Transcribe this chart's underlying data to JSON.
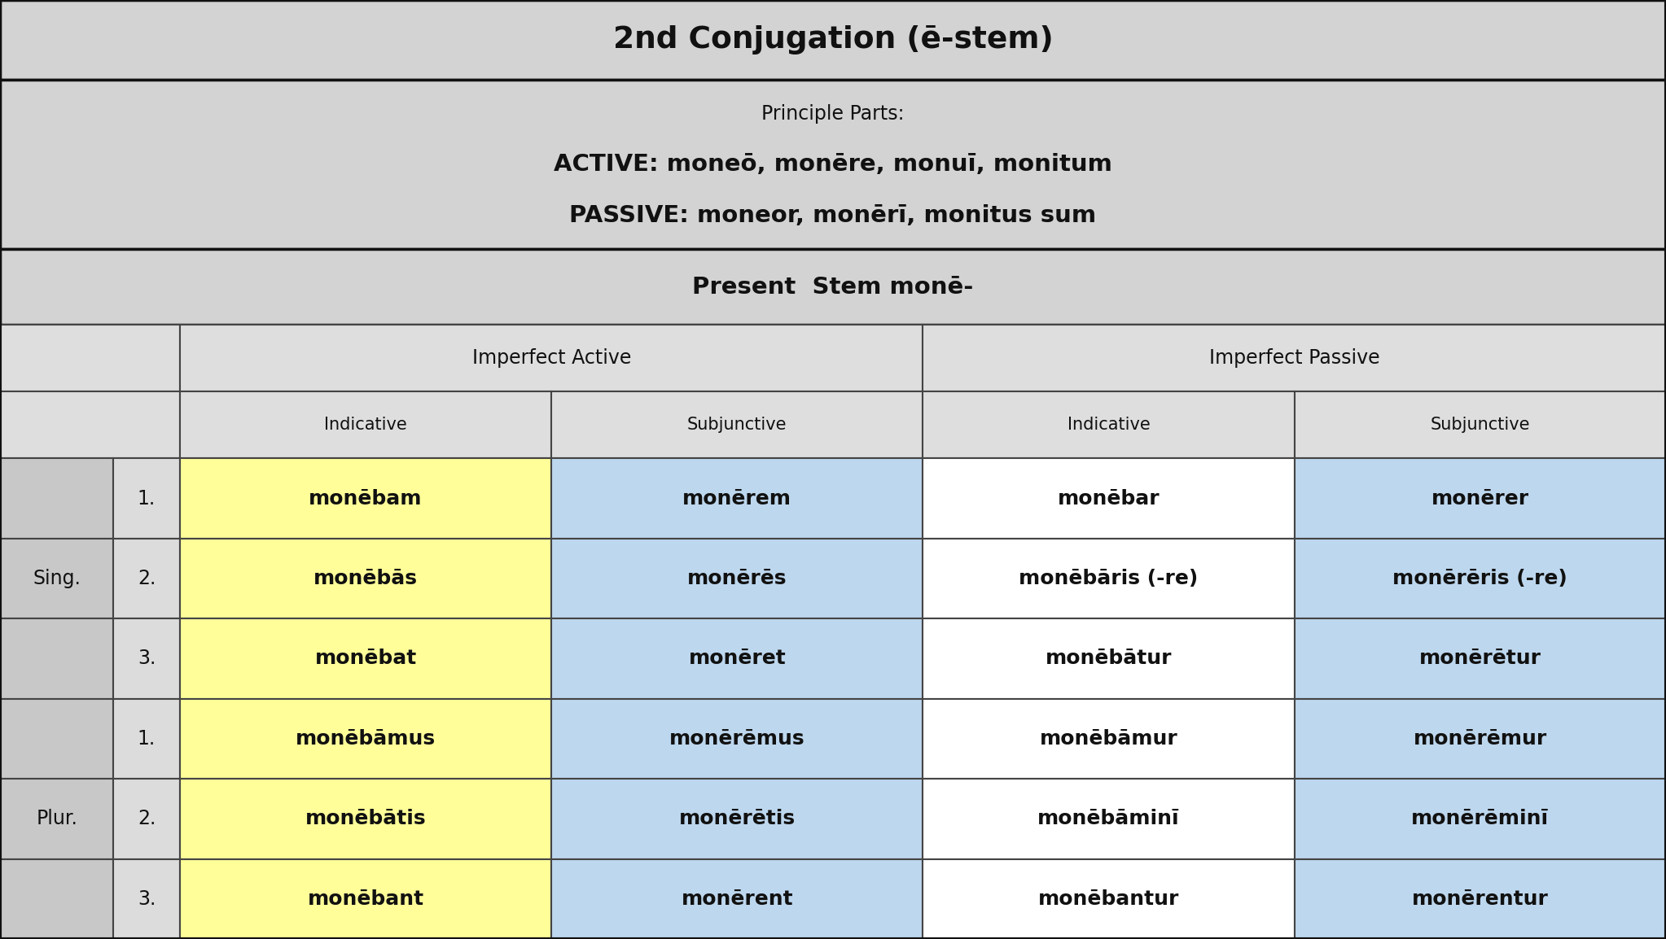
{
  "title": "2nd Conjugation (ē-stem)",
  "pp_line1": "Principle Parts:",
  "pp_line2_label": "active: ",
  "pp_line2_content": "moneō, monēre, monuī, monitum",
  "pp_line3_label": "passive: ",
  "pp_line3_content": "moneor, monērī, monitus sum",
  "stem_normal": "Present  Stem ",
  "stem_bold": "monē-",
  "header_ia": "Imperfect Active",
  "header_ip": "Imperfect Passive",
  "header_ind": "Indicative",
  "header_subj": "Subjunctive",
  "sing": "Sing.",
  "plur": "Plur.",
  "numbers": [
    "1.",
    "2.",
    "3.",
    "1.",
    "2.",
    "3."
  ],
  "rows": [
    [
      "monēbam",
      "monērem",
      "monēbar",
      "monērer"
    ],
    [
      "monēbās",
      "monērēs",
      "monēbāris (-re)",
      "monērēris (-re)"
    ],
    [
      "monēbat",
      "monēret",
      "monēbātur",
      "monērētur"
    ],
    [
      "monēbāmus",
      "monērēmus",
      "monēbāmur",
      "monērēmur"
    ],
    [
      "monēbātis",
      "monērētis",
      "monēbāminī",
      "monērēminī"
    ],
    [
      "monēbant",
      "monērent",
      "monēbantur",
      "monērentur"
    ]
  ],
  "bg_title": "#D3D3D3",
  "bg_header": "#DEDEDE",
  "bg_sing": "#C8C8C8",
  "bg_num": "#DCDCDC",
  "bg_yellow": "#FFFE99",
  "bg_blue": "#BDD7EE",
  "bg_white": "#FFFFFF",
  "fg": "#111111",
  "border": "#444444",
  "border_outer": "#111111"
}
